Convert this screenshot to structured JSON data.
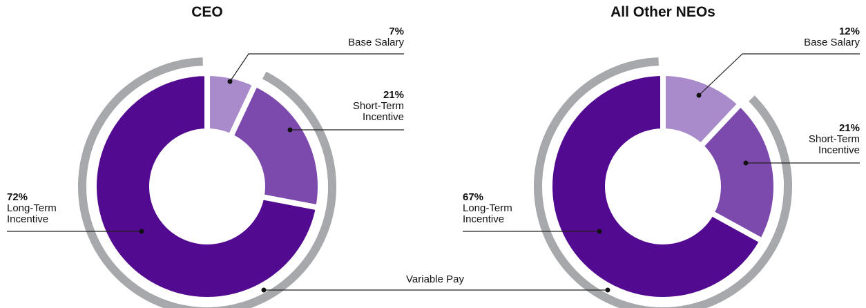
{
  "chart_data": [
    {
      "type": "donut",
      "title": "CEO",
      "categories": [
        "Base Salary",
        "Short-Term Incentive",
        "Long-Term Incentive"
      ],
      "values": [
        7,
        21,
        72
      ],
      "value_labels": [
        "7%",
        "21%",
        "72%"
      ],
      "colors": [
        "#a98bcb",
        "#7c4aad",
        "#520a90"
      ]
    },
    {
      "type": "donut",
      "title": "All Other NEOs",
      "categories": [
        "Base Salary",
        "Short-Term Incentive",
        "Long-Term Incentive"
      ],
      "values": [
        12,
        21,
        67
      ],
      "value_labels": [
        "12%",
        "21%",
        "67%"
      ],
      "colors": [
        "#a98bcb",
        "#7c4aad",
        "#520a90"
      ]
    }
  ],
  "annotation": "Variable Pay"
}
